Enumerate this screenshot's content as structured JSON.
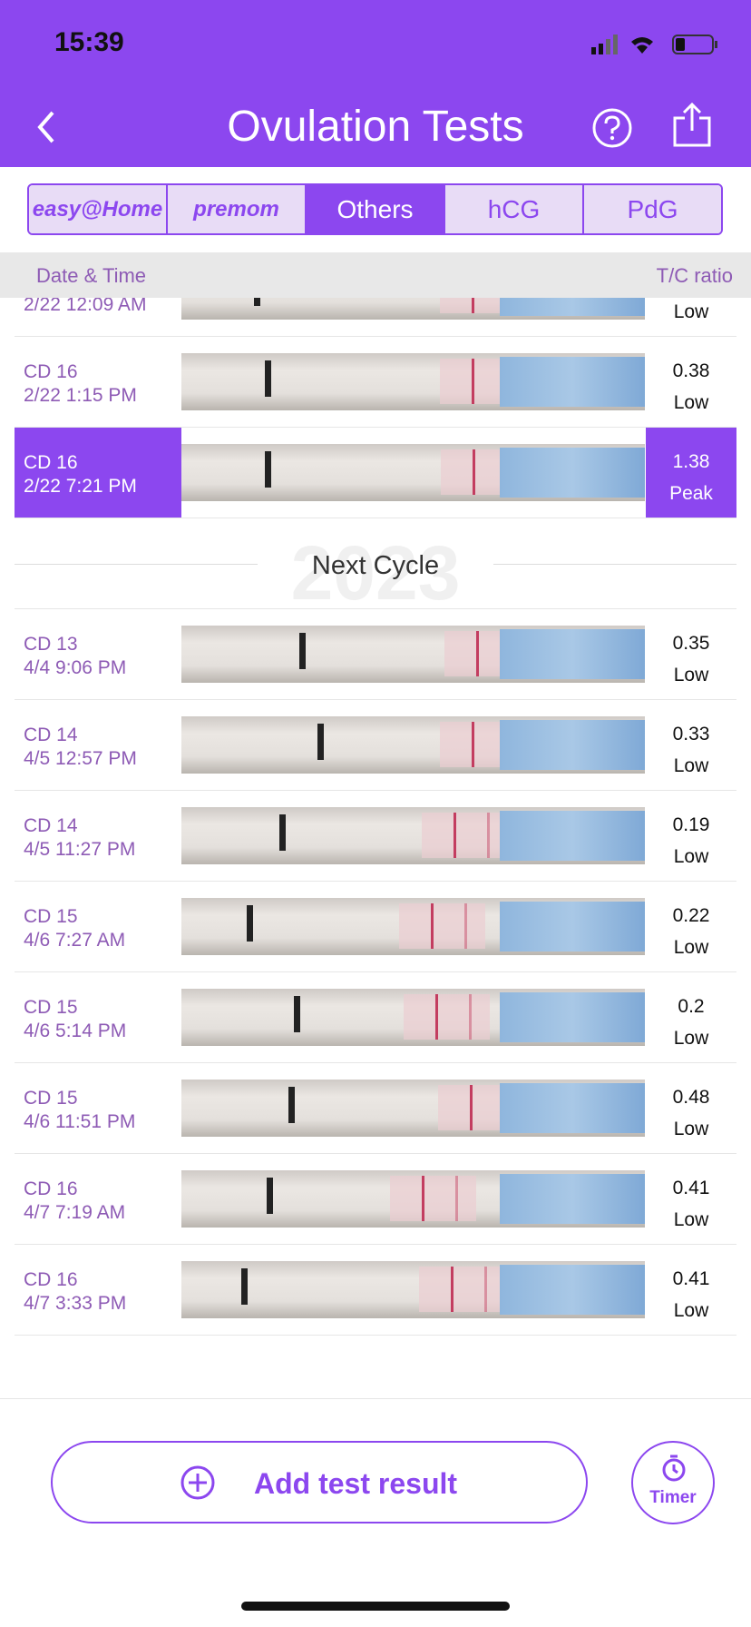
{
  "status_bar": {
    "time": "15:39"
  },
  "header": {
    "title": "Ovulation Tests"
  },
  "tabs": [
    "easy@Home",
    "premom",
    "Others",
    "hCG",
    "PdG"
  ],
  "selected_tab": 2,
  "columns": [
    "Date & Time",
    "T/C ratio"
  ],
  "rows_before": [
    {
      "datetime": "2/22 12:09 AM",
      "level": "Low"
    },
    {
      "cycle_day": "CD 16",
      "datetime": "2/22 1:15 PM",
      "ratio": 0.38,
      "level": "Low"
    },
    {
      "cycle_day": "CD 16",
      "datetime": "2/22 7:21 PM",
      "ratio": 1.38,
      "level": "Peak",
      "highlighted": true
    }
  ],
  "divider": {
    "label": "Next Cycle",
    "watermark": "2023"
  },
  "rows_after": [
    {
      "cycle_day": "CD 13",
      "datetime": "4/4 9:06 PM",
      "ratio": 0.35,
      "level": "Low"
    },
    {
      "cycle_day": "CD 14",
      "datetime": "4/5 12:57 PM",
      "ratio": 0.33,
      "level": "Low"
    },
    {
      "cycle_day": "CD 14",
      "datetime": "4/5 11:27 PM",
      "ratio": 0.19,
      "level": "Low"
    },
    {
      "cycle_day": "CD 15",
      "datetime": "4/6 7:27 AM",
      "ratio": 0.22,
      "level": "Low"
    },
    {
      "cycle_day": "CD 15",
      "datetime": "4/6 5:14 PM",
      "ratio": 0.2,
      "level": "Low"
    },
    {
      "cycle_day": "CD 15",
      "datetime": "4/6 11:51 PM",
      "ratio": 0.48,
      "level": "Low"
    },
    {
      "cycle_day": "CD 16",
      "datetime": "4/7 7:19 AM",
      "ratio": 0.41,
      "level": "Low"
    },
    {
      "cycle_day": "CD 16",
      "datetime": "4/7 3:33 PM",
      "ratio": 0.41,
      "level": "Low"
    }
  ],
  "footer": {
    "add_button": "Add test result",
    "timer_button": "Timer"
  }
}
